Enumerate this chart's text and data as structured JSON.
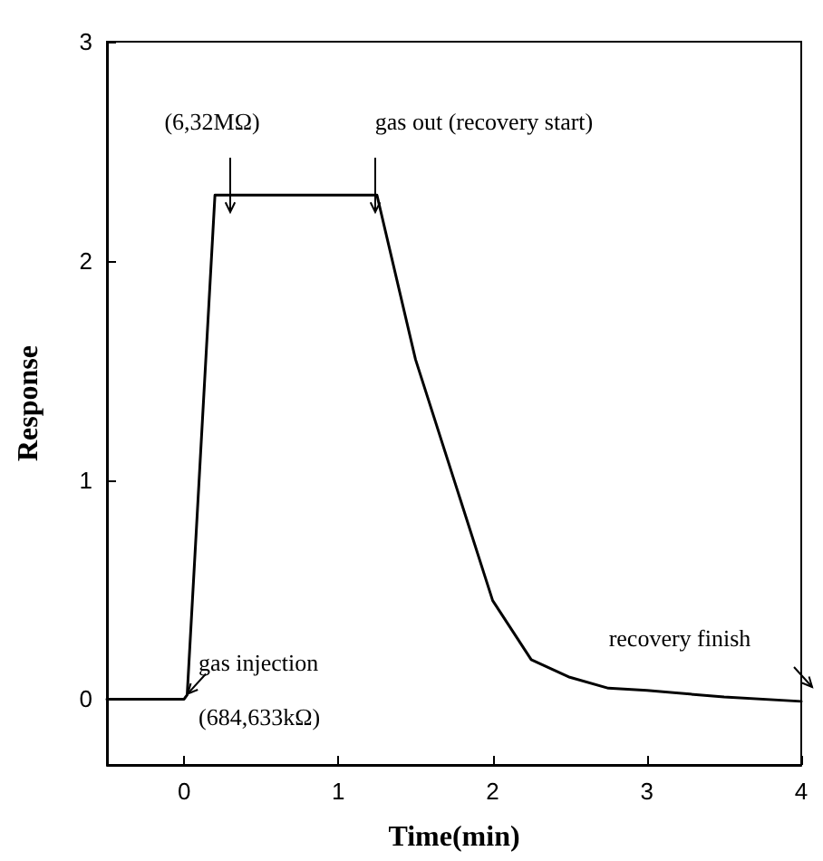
{
  "chart_data": {
    "type": "line",
    "xlabel": "Time(min)",
    "ylabel": "Response",
    "x": [
      -0.5,
      0,
      0.02,
      0.2,
      1.25,
      1.5,
      1.75,
      2,
      2.25,
      2.5,
      2.75,
      3,
      3.5,
      4
    ],
    "series": [
      {
        "color": "#000000",
        "values": [
          0,
          0,
          0.02,
          2.3,
          2.3,
          1.55,
          1.0,
          0.45,
          0.18,
          0.1,
          0.05,
          0.04,
          0.01,
          -0.01
        ]
      }
    ],
    "xlim": [
      -0.5,
      4
    ],
    "xticks": [
      0,
      1,
      2,
      3,
      4
    ],
    "ylim": [
      -0.3,
      3
    ],
    "yticks": [
      0,
      1,
      2,
      3
    ],
    "annotations": [
      "(6,32MΩ)",
      "gas out (recovery start)",
      {
        "text": "gas injection",
        "x": 0,
        "y": 0
      },
      {
        "text": "(684,633kΩ)",
        "x": 0,
        "y": 0
      },
      "recovery finish"
    ],
    "grid": false,
    "marker": "none",
    "line_style": "solid"
  }
}
